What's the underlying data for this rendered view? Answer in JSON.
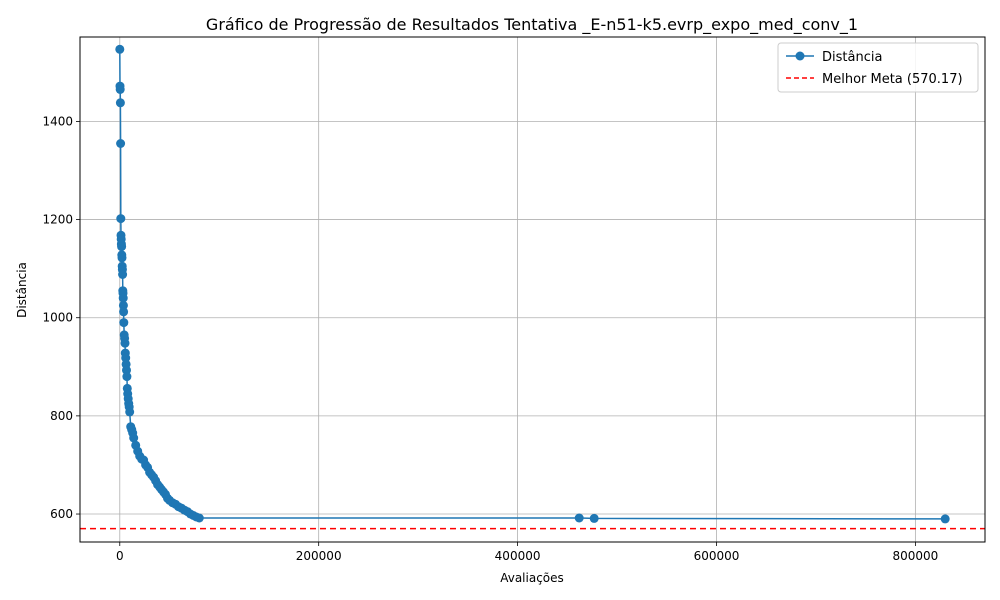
{
  "chart_data": {
    "type": "line",
    "title": "Gráfico de Progressão de Resultados Tentativa _E-n51-k5.evrp_expo_med_conv_1",
    "xlabel": "Avaliações",
    "ylabel": "Distância",
    "xlim": [
      -40000,
      870000
    ],
    "ylim": [
      543,
      1572
    ],
    "x_ticks": [
      0,
      200000,
      400000,
      600000,
      800000
    ],
    "y_ticks": [
      600,
      800,
      1000,
      1200,
      1400
    ],
    "grid": true,
    "legend_position": "top-right",
    "series": [
      {
        "name": "Distância",
        "color": "#1f77b4",
        "marker": "circle",
        "x": [
          0,
          200,
          400,
          600,
          800,
          1000,
          1200,
          1400,
          1600,
          1800,
          2000,
          2200,
          2400,
          2600,
          2800,
          3000,
          3200,
          3400,
          3600,
          3800,
          4000,
          4400,
          4800,
          5200,
          5600,
          6000,
          6400,
          6800,
          7200,
          7600,
          8000,
          8500,
          9000,
          9500,
          10000,
          11000,
          12000,
          13000,
          14000,
          16000,
          18000,
          20000,
          22000,
          24000,
          26000,
          28000,
          30000,
          32000,
          34000,
          36000,
          38000,
          40000,
          42000,
          44000,
          46000,
          48000,
          50000,
          53000,
          56000,
          59000,
          62000,
          65000,
          68000,
          71000,
          74000,
          77000,
          80000,
          462000,
          477000,
          830000
        ],
        "y": [
          1547,
          1472,
          1465,
          1438,
          1355,
          1202,
          1168,
          1160,
          1150,
          1145,
          1128,
          1122,
          1105,
          1098,
          1088,
          1055,
          1050,
          1040,
          1025,
          1012,
          990,
          965,
          958,
          948,
          928,
          918,
          905,
          893,
          880,
          856,
          845,
          835,
          825,
          818,
          808,
          778,
          772,
          765,
          755,
          740,
          728,
          718,
          712,
          710,
          700,
          695,
          685,
          680,
          675,
          668,
          660,
          655,
          650,
          645,
          640,
          632,
          628,
          623,
          620,
          615,
          612,
          608,
          605,
          600,
          597,
          594,
          592,
          592,
          591,
          590
        ]
      }
    ],
    "reference_line": {
      "name": "Melhor Meta (570.17)",
      "value": 570.17,
      "color": "#ff0000",
      "style": "dashed"
    }
  }
}
